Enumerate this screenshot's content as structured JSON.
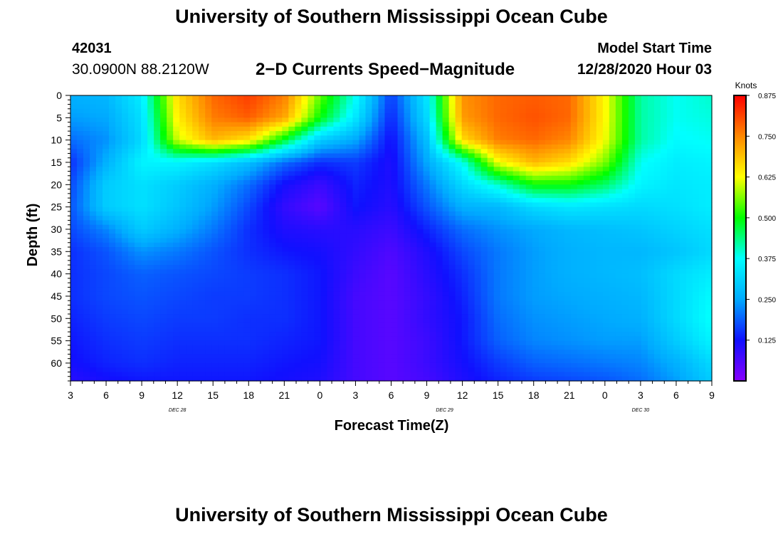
{
  "header": {
    "title": "University of Southern Mississippi Ocean Cube",
    "station_id": "42031",
    "station_coords": "30.0900N 88.2120W",
    "subtitle": "2−D Currents Speed−Magnitude",
    "model_start_label": "Model Start Time",
    "model_start_value": "12/28/2020 Hour 03"
  },
  "footer": {
    "title": "University of Southern Mississippi Ocean Cube"
  },
  "chart_data": {
    "type": "heatmap",
    "title": "2−D Currents Speed−Magnitude",
    "xlabel": "Forecast Time(Z)",
    "ylabel": "Depth (ft)",
    "x_ticks": [
      "3",
      "6",
      "9",
      "12",
      "15",
      "18",
      "21",
      "0",
      "3",
      "6",
      "9",
      "12",
      "15",
      "18",
      "21",
      "0",
      "3",
      "6",
      "9"
    ],
    "x_date_labels": [
      {
        "text": "DEC 28",
        "at_tick": 3
      },
      {
        "text": "DEC 29",
        "at_tick": 10.5
      },
      {
        "text": "DEC 30",
        "at_tick": 16
      }
    ],
    "y_ticks": [
      "0",
      "5",
      "10",
      "15",
      "20",
      "25",
      "30",
      "35",
      "40",
      "45",
      "50",
      "55",
      "60"
    ],
    "y_range_ft": [
      0,
      64
    ],
    "x_range_hours": [
      0,
      54
    ],
    "colorbar_label": "Knots",
    "colorbar_ticks": [
      "0.875",
      "0.750",
      "0.625",
      "0.500",
      "0.375",
      "0.250",
      "0.125"
    ],
    "colorbar_range": [
      0.0,
      0.875
    ],
    "colors": {
      "stops": [
        "#8800ff",
        "#1010ff",
        "#00aaff",
        "#00ffff",
        "#00ff00",
        "#ffff00",
        "#ff8800",
        "#ff0000"
      ]
    },
    "speed_field": {
      "x_hours": [
        0,
        3,
        6,
        9,
        12,
        15,
        18,
        21,
        24,
        27,
        30,
        33,
        36,
        39,
        42,
        45,
        48,
        51,
        54
      ],
      "depth_ft": [
        0,
        5,
        10,
        15,
        20,
        25,
        30,
        35,
        40,
        45,
        50,
        55,
        60,
        64
      ],
      "rows_knots": [
        [
          0.26,
          0.27,
          0.35,
          0.66,
          0.78,
          0.82,
          0.76,
          0.55,
          0.38,
          0.16,
          0.34,
          0.74,
          0.78,
          0.79,
          0.78,
          0.63,
          0.42,
          0.38,
          0.4
        ],
        [
          0.24,
          0.25,
          0.33,
          0.64,
          0.76,
          0.79,
          0.72,
          0.5,
          0.34,
          0.14,
          0.32,
          0.73,
          0.78,
          0.8,
          0.78,
          0.63,
          0.42,
          0.38,
          0.39
        ],
        [
          0.2,
          0.23,
          0.32,
          0.6,
          0.7,
          0.65,
          0.48,
          0.3,
          0.25,
          0.12,
          0.28,
          0.66,
          0.76,
          0.78,
          0.75,
          0.62,
          0.42,
          0.37,
          0.38
        ],
        [
          0.15,
          0.26,
          0.36,
          0.36,
          0.33,
          0.28,
          0.2,
          0.15,
          0.16,
          0.11,
          0.25,
          0.38,
          0.62,
          0.7,
          0.66,
          0.56,
          0.38,
          0.35,
          0.36
        ],
        [
          0.17,
          0.3,
          0.33,
          0.3,
          0.26,
          0.2,
          0.12,
          0.08,
          0.14,
          0.11,
          0.21,
          0.32,
          0.4,
          0.5,
          0.5,
          0.45,
          0.36,
          0.34,
          0.35
        ],
        [
          0.18,
          0.3,
          0.33,
          0.29,
          0.24,
          0.17,
          0.09,
          0.05,
          0.13,
          0.1,
          0.18,
          0.26,
          0.27,
          0.32,
          0.34,
          0.33,
          0.32,
          0.33,
          0.35
        ],
        [
          0.17,
          0.22,
          0.3,
          0.26,
          0.21,
          0.15,
          0.11,
          0.1,
          0.1,
          0.08,
          0.14,
          0.2,
          0.23,
          0.25,
          0.27,
          0.28,
          0.29,
          0.31,
          0.33
        ],
        [
          0.15,
          0.18,
          0.23,
          0.21,
          0.18,
          0.15,
          0.13,
          0.12,
          0.09,
          0.06,
          0.11,
          0.17,
          0.21,
          0.24,
          0.26,
          0.27,
          0.27,
          0.29,
          0.32
        ],
        [
          0.15,
          0.17,
          0.19,
          0.18,
          0.17,
          0.16,
          0.15,
          0.13,
          0.08,
          0.05,
          0.1,
          0.15,
          0.21,
          0.24,
          0.26,
          0.27,
          0.28,
          0.32,
          0.35
        ],
        [
          0.15,
          0.17,
          0.18,
          0.17,
          0.16,
          0.16,
          0.15,
          0.13,
          0.07,
          0.05,
          0.09,
          0.14,
          0.21,
          0.24,
          0.25,
          0.26,
          0.27,
          0.32,
          0.37
        ],
        [
          0.14,
          0.16,
          0.17,
          0.16,
          0.16,
          0.15,
          0.15,
          0.13,
          0.07,
          0.05,
          0.09,
          0.13,
          0.2,
          0.23,
          0.24,
          0.25,
          0.26,
          0.32,
          0.38
        ],
        [
          0.13,
          0.15,
          0.16,
          0.15,
          0.15,
          0.15,
          0.14,
          0.13,
          0.07,
          0.05,
          0.08,
          0.13,
          0.19,
          0.22,
          0.23,
          0.24,
          0.24,
          0.3,
          0.36
        ],
        [
          0.12,
          0.14,
          0.15,
          0.14,
          0.14,
          0.14,
          0.13,
          0.12,
          0.07,
          0.05,
          0.08,
          0.12,
          0.16,
          0.19,
          0.2,
          0.21,
          0.22,
          0.26,
          0.32
        ],
        [
          0.1,
          0.12,
          0.13,
          0.13,
          0.13,
          0.13,
          0.12,
          0.11,
          0.07,
          0.05,
          0.07,
          0.11,
          0.14,
          0.16,
          0.17,
          0.18,
          0.2,
          0.24,
          0.3
        ]
      ]
    }
  }
}
